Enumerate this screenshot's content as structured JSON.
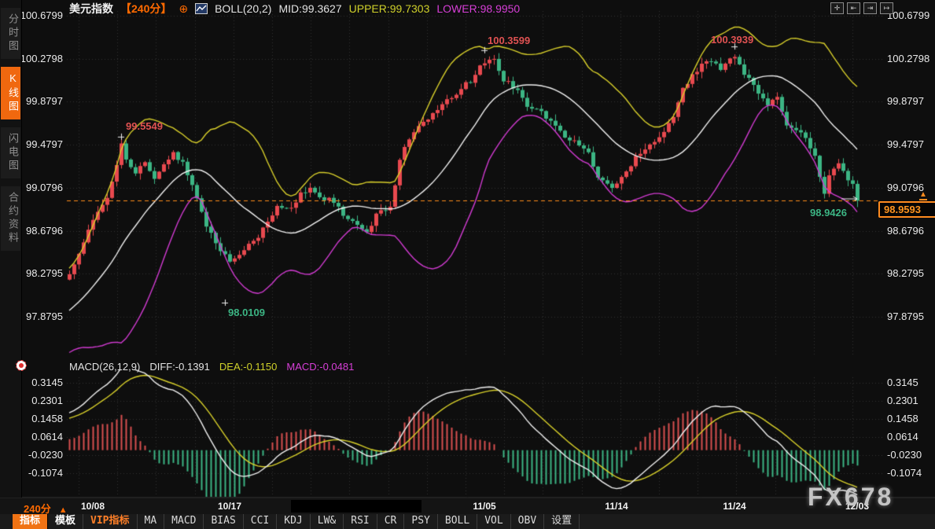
{
  "header": {
    "symbol": "美元指数",
    "period": "【240分】",
    "boll_label": "BOLL(20,2)",
    "mid": "MID:99.3627",
    "upper": "UPPER:99.7303",
    "lower": "LOWER:98.9950"
  },
  "window_icons": [
    "✛",
    "⇤",
    "⇥",
    "↦"
  ],
  "sidebar": {
    "items": [
      {
        "label": "分时图",
        "active": false
      },
      {
        "label": "K线图",
        "active": true
      },
      {
        "label": "闪电图",
        "active": false
      },
      {
        "label": "合约资料",
        "active": false
      }
    ]
  },
  "price_axis": [
    "100.6799",
    "100.2798",
    "99.8797",
    "99.4797",
    "99.0796",
    "98.6796",
    "98.2795",
    "97.8795"
  ],
  "macd_axis": [
    "0.3145",
    "0.2301",
    "0.1458",
    "0.0614",
    "-0.0230",
    "-0.1074"
  ],
  "macd_header": {
    "title": "MACD(26,12,9)",
    "diff": "DIFF:-0.1391",
    "dea": "DEA:-0.1150",
    "macd": "MACD:-0.0481"
  },
  "current_price": "98.9593",
  "footer": {
    "period": "240分",
    "period_arrow": "▲",
    "dates": [
      "10/08",
      "10/17",
      "11/05",
      "11/14",
      "11/24",
      "12/03"
    ],
    "watermark": "FX678"
  },
  "toolbar": {
    "items": [
      {
        "label": "指标",
        "style": "active"
      },
      {
        "label": "模板",
        "style": "bold"
      },
      {
        "label": "VIP指标",
        "style": "vip"
      },
      {
        "label": "MA",
        "style": ""
      },
      {
        "label": "MACD",
        "style": ""
      },
      {
        "label": "BIAS",
        "style": ""
      },
      {
        "label": "CCI",
        "style": ""
      },
      {
        "label": "KDJ",
        "style": ""
      },
      {
        "label": "LW&",
        "style": ""
      },
      {
        "label": "RSI",
        "style": ""
      },
      {
        "label": "CR",
        "style": ""
      },
      {
        "label": "PSY",
        "style": ""
      },
      {
        "label": "BOLL",
        "style": ""
      },
      {
        "label": "VOL",
        "style": ""
      },
      {
        "label": "OBV",
        "style": ""
      },
      {
        "label": "设置",
        "style": ""
      }
    ]
  },
  "colors": {
    "background": "#0e0e0e",
    "candle_up": "#e8494f",
    "candle_down": "#3cb584",
    "boll_upper": "#d8cf2b",
    "boll_mid": "#f2f2f2",
    "boll_lower": "#d23bd2",
    "macd_diff": "#f0f0f0",
    "macd_dea": "#d7cf2a",
    "hist_pos": "#d94f4f",
    "hist_neg": "#3cb584",
    "accent_orange": "#ff6a00",
    "price_line": "#ff8c1a",
    "grid": "#323232"
  },
  "chart_data": {
    "type": "candlestick",
    "symbol": "美元指数",
    "interval": "240分",
    "candle_count": 168,
    "ylim": [
      97.8795,
      100.6799
    ],
    "y_ticks": [
      100.6799,
      100.2798,
      99.8797,
      99.4797,
      99.0796,
      98.6796,
      98.2795,
      97.8795
    ],
    "x_dates": [
      "10/08",
      "10/17",
      "11/05",
      "11/14",
      "11/24",
      "12/03"
    ],
    "x_date_candle_idx": [
      5,
      34,
      88,
      116,
      141,
      167
    ],
    "last_price": 98.9593,
    "close_waypoints": [
      [
        0,
        98.3
      ],
      [
        2,
        98.45
      ],
      [
        5,
        98.78
      ],
      [
        8,
        99.0
      ],
      [
        9,
        99.15
      ],
      [
        11,
        99.48
      ],
      [
        12,
        99.35
      ],
      [
        14,
        99.2
      ],
      [
        16,
        99.32
      ],
      [
        18,
        99.15
      ],
      [
        22,
        99.42
      ],
      [
        24,
        99.3
      ],
      [
        27,
        99.0
      ],
      [
        29,
        98.72
      ],
      [
        32,
        98.5
      ],
      [
        34,
        98.4
      ],
      [
        37,
        98.52
      ],
      [
        39,
        98.58
      ],
      [
        42,
        98.75
      ],
      [
        44,
        98.9
      ],
      [
        47,
        98.88
      ],
      [
        49,
        99.02
      ],
      [
        51,
        99.08
      ],
      [
        53,
        99.0
      ],
      [
        56,
        98.95
      ],
      [
        58,
        98.82
      ],
      [
        61,
        98.72
      ],
      [
        63,
        98.66
      ],
      [
        65,
        98.82
      ],
      [
        68,
        98.9
      ],
      [
        70,
        99.35
      ],
      [
        72,
        99.55
      ],
      [
        75,
        99.68
      ],
      [
        78,
        99.8
      ],
      [
        80,
        99.88
      ],
      [
        83,
        100.0
      ],
      [
        85,
        100.08
      ],
      [
        88,
        100.25
      ],
      [
        90,
        100.28
      ],
      [
        92,
        100.08
      ],
      [
        95,
        100.0
      ],
      [
        97,
        99.85
      ],
      [
        100,
        99.78
      ],
      [
        102,
        99.7
      ],
      [
        105,
        99.55
      ],
      [
        108,
        99.48
      ],
      [
        110,
        99.4
      ],
      [
        112,
        99.18
      ],
      [
        115,
        99.08
      ],
      [
        118,
        99.22
      ],
      [
        120,
        99.38
      ],
      [
        122,
        99.45
      ],
      [
        125,
        99.55
      ],
      [
        128,
        99.75
      ],
      [
        130,
        100.0
      ],
      [
        132,
        100.12
      ],
      [
        135,
        100.26
      ],
      [
        138,
        100.2
      ],
      [
        141,
        100.32
      ],
      [
        143,
        100.15
      ],
      [
        145,
        100.02
      ],
      [
        148,
        99.85
      ],
      [
        150,
        99.9
      ],
      [
        152,
        99.68
      ],
      [
        155,
        99.6
      ],
      [
        158,
        99.4
      ],
      [
        160,
        99.0
      ],
      [
        161,
        99.22
      ],
      [
        163,
        99.3
      ],
      [
        164,
        99.22
      ],
      [
        166,
        99.12
      ],
      [
        167,
        98.96
      ]
    ],
    "pre_roll": {
      "start": 97.45,
      "end": 98.22,
      "count": 24
    },
    "indicators": {
      "boll": {
        "period": 20,
        "mult": 2,
        "mid": 99.3627,
        "upper": 99.7303,
        "lower": 98.995
      },
      "macd": {
        "fast": 12,
        "slow": 26,
        "signal": 9,
        "diff": -0.1391,
        "dea": -0.115,
        "bar": -0.0481,
        "y_ticks": [
          0.3145,
          0.2301,
          0.1458,
          0.0614,
          -0.023,
          -0.1074
        ]
      }
    },
    "annotations": [
      {
        "text": "99.5549",
        "price": 99.5549,
        "candle_idx": 11,
        "type": "high",
        "cross": true
      },
      {
        "text": "100.3599",
        "price": 100.3599,
        "candle_idx": 88,
        "type": "high",
        "cross": true
      },
      {
        "text": "100.3939",
        "price": 100.3939,
        "candle_idx": 141,
        "type": "high",
        "cross": true
      },
      {
        "text": "98.0109",
        "price": 98.0109,
        "candle_idx": 33,
        "type": "low",
        "cross": true
      },
      {
        "text": "98.9426",
        "price": 98.9426,
        "candle_idx": 159,
        "type": "low",
        "cross": false
      }
    ]
  }
}
